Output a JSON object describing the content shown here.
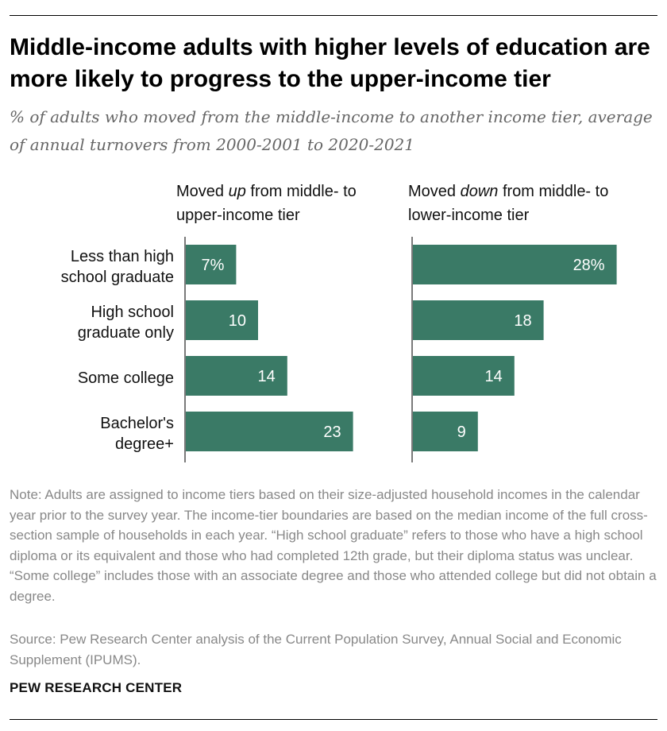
{
  "title": "Middle-income adults with higher levels of education are more likely to progress to the upper-income tier",
  "subtitle": "% of adults who moved from the middle-income to another income tier, average of annual turnovers from 2000-2001 to 2020-2021",
  "panels": {
    "up": {
      "pre": "Moved ",
      "em": "up",
      "post": " from middle- to",
      "line2": "upper-income tier"
    },
    "down": {
      "pre": "Moved ",
      "em": "down",
      "post": " from middle- to",
      "line2": "lower-income tier"
    }
  },
  "categories": [
    {
      "line1": "Less than high",
      "line2": "school graduate"
    },
    {
      "line1": "High school",
      "line2": "graduate only"
    },
    {
      "line1": "Some college",
      "line2": ""
    },
    {
      "line1": "Bachelor's",
      "line2": "degree+"
    }
  ],
  "chart_data": {
    "type": "bar",
    "orientation": "horizontal",
    "title": "Middle-income adults with higher levels of education are more likely to progress to the upper-income tier",
    "unit": "%",
    "categories": [
      "Less than high school graduate",
      "High school graduate only",
      "Some college",
      "Bachelor's degree+"
    ],
    "series": [
      {
        "name": "Moved up from middle- to upper-income tier",
        "values": [
          7,
          10,
          14,
          23
        ],
        "labels": [
          "7%",
          "10",
          "14",
          "23"
        ]
      },
      {
        "name": "Moved down from middle- to lower-income tier",
        "values": [
          28,
          18,
          14,
          9
        ],
        "labels": [
          "28%",
          "18",
          "14",
          "9"
        ]
      }
    ],
    "colors": {
      "bar": "#3a7a66",
      "value_text": "#ffffff",
      "axis": "#7a7a7a"
    }
  },
  "note": "Note: Adults are assigned to income tiers based on their size-adjusted household incomes in the calendar year prior to the survey year. The income-tier boundaries are based on the median income of the full cross-section sample of households in each year. “High school graduate” refers to those who have a high school diploma or its equivalent and those who had completed 12th grade, but their diploma status was unclear. “Some college” includes those with an associate degree and those who attended college but did not obtain a degree.",
  "source": "Source: Pew Research Center analysis of the Current Population Survey, Annual Social and Economic Supplement (IPUMS).",
  "brand": "PEW RESEARCH CENTER"
}
